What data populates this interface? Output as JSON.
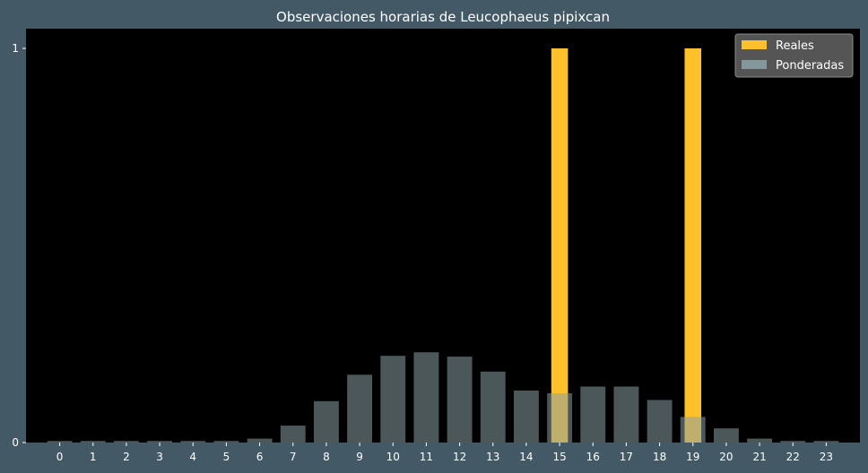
{
  "chart_data": {
    "type": "bar",
    "title": "Observaciones horarias de Leucophaeus pipixcan",
    "xlabel": "",
    "ylabel": "",
    "categories": [
      "0",
      "1",
      "2",
      "3",
      "4",
      "5",
      "6",
      "7",
      "8",
      "9",
      "10",
      "11",
      "12",
      "13",
      "14",
      "15",
      "16",
      "17",
      "18",
      "19",
      "20",
      "21",
      "22",
      "23"
    ],
    "ylim": [
      0,
      1
    ],
    "yticks": [
      "0",
      "1"
    ],
    "series": [
      {
        "name": "Reales",
        "color": "#ffc12a",
        "values": [
          0,
          0,
          0,
          0,
          0,
          0,
          0,
          0,
          0,
          0,
          0,
          0,
          0,
          0,
          0,
          1,
          0,
          0,
          0,
          1,
          0,
          0,
          0,
          0
        ]
      },
      {
        "name": "Ponderadas",
        "color": "#8a9ea3",
        "values": [
          0.004,
          0.004,
          0.004,
          0.004,
          0.004,
          0.004,
          0.01,
          0.043,
          0.105,
          0.172,
          0.22,
          0.229,
          0.218,
          0.18,
          0.132,
          0.125,
          0.142,
          0.142,
          0.108,
          0.065,
          0.036,
          0.01,
          0.004,
          0.004
        ]
      }
    ],
    "legend": {
      "position": "top-right",
      "entries": [
        "Reales",
        "Ponderadas"
      ]
    },
    "grid": false,
    "colors": {
      "figure_bg": "#435a66",
      "plot_bg": "#000000",
      "text": "#ffffff"
    }
  }
}
